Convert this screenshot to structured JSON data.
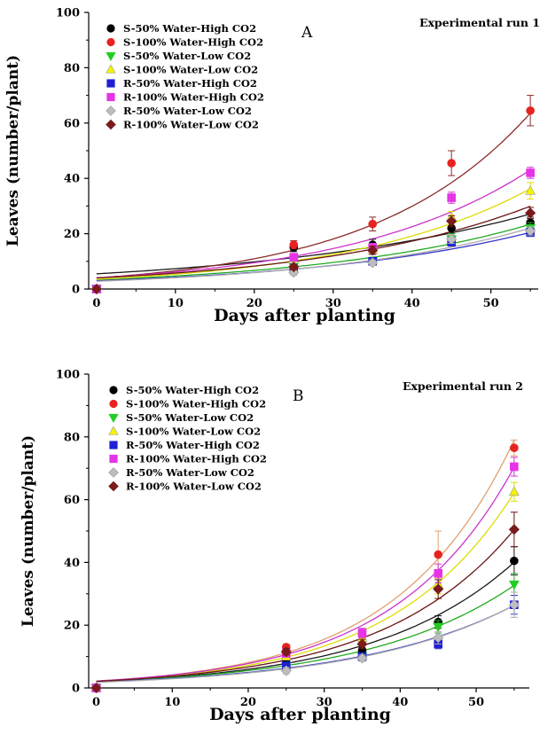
{
  "chart_data": [
    {
      "type": "scatter",
      "panel_label": "A",
      "run_label": "Experimental run 1",
      "xlabel": "Days after planting",
      "ylabel": "Leaves (number/plant)",
      "xlim": [
        -1,
        56
      ],
      "ylim": [
        0,
        100
      ],
      "xticks": [
        0,
        10,
        20,
        30,
        40,
        50
      ],
      "yticks": [
        0,
        20,
        40,
        60,
        80,
        100
      ],
      "legend_position": "top-left",
      "x": [
        0,
        25,
        35,
        45,
        55
      ],
      "series": [
        {
          "name": "S-50% Water-High CO2",
          "color": "#000000",
          "marker": "circle",
          "values": [
            0,
            15,
            16,
            22,
            24
          ],
          "err": [
            0,
            1.5,
            2,
            2,
            2
          ],
          "curve": [
            5.5,
            0.029
          ],
          "curve_color": "#1a1a1a"
        },
        {
          "name": "S-100% Water-High CO2",
          "color": "#e8231f",
          "marker": "circle",
          "values": [
            0,
            16,
            23.5,
            45.5,
            64.5
          ],
          "err": [
            0,
            1.5,
            2.5,
            4.5,
            5.5
          ],
          "curve": [
            4.0,
            0.0503
          ],
          "curve_color": "#8b2a2a"
        },
        {
          "name": "S-50% Water-Low CO2",
          "color": "#22cc22",
          "marker": "triangle-down",
          "values": [
            0,
            8,
            10,
            18,
            22
          ],
          "err": [
            0,
            1,
            1.5,
            2,
            2
          ],
          "curve": [
            3.3,
            0.0356
          ],
          "curve_color": "#22aa22"
        },
        {
          "name": "S-100% Water-Low CO2",
          "color": "#f4f400",
          "marker": "triangle-up",
          "values": [
            0,
            11,
            14,
            26,
            35.5
          ],
          "err": [
            0,
            1,
            1.5,
            2,
            3
          ],
          "curve": [
            3.5,
            0.0425
          ],
          "curve_color": "#dddd00"
        },
        {
          "name": "R-50% Water-High CO2",
          "color": "#1f1fd6",
          "marker": "square",
          "values": [
            0,
            7,
            10,
            17,
            20.5
          ],
          "err": [
            0,
            1,
            1,
            1.5,
            1.5
          ],
          "curve": [
            3.0,
            0.0349
          ],
          "curve_color": "#3333cc"
        },
        {
          "name": "R-100% Water-High CO2",
          "color": "#e633e6",
          "marker": "square",
          "values": [
            0,
            11.5,
            15,
            33,
            42
          ],
          "err": [
            0,
            1,
            1.5,
            2,
            2
          ],
          "curve": [
            4.0,
            0.0432
          ],
          "curve_color": "#cc33cc"
        },
        {
          "name": "R-50% Water-Low CO2",
          "color": "#bdbdbd",
          "marker": "diamond",
          "values": [
            0,
            6,
            9.5,
            18,
            21
          ],
          "err": [
            0,
            1,
            1,
            1.5,
            1.5
          ],
          "curve": [
            2.8,
            0.0375
          ],
          "curve_color": "#aaaaaa"
        },
        {
          "name": "R-100% Water-Low CO2",
          "color": "#7a1a1a",
          "marker": "diamond",
          "values": [
            0,
            8,
            14,
            24.5,
            27.5
          ],
          "err": [
            0,
            1,
            1.5,
            2,
            2
          ],
          "curve": [
            4.0,
            0.0366
          ],
          "curve_color": "#6a1515"
        }
      ]
    },
    {
      "type": "scatter",
      "panel_label": "B",
      "run_label": "Experimental run 2",
      "xlabel": "Days after planting",
      "ylabel": "Leaves (number/plant)",
      "xlim": [
        -1,
        57
      ],
      "ylim": [
        0,
        100
      ],
      "xticks": [
        0,
        10,
        20,
        30,
        40,
        50
      ],
      "yticks": [
        0,
        20,
        40,
        60,
        80,
        100
      ],
      "legend_position": "top-left",
      "x": [
        0,
        25,
        35,
        45,
        55
      ],
      "series": [
        {
          "name": "S-50% Water-High CO2",
          "color": "#000000",
          "marker": "circle",
          "values": [
            0,
            9,
            12,
            21,
            40.5
          ],
          "err": [
            0,
            1,
            1.5,
            2,
            4.5
          ],
          "curve": [
            2.0,
            0.0545
          ],
          "curve_color": "#1a1a1a"
        },
        {
          "name": "S-100% Water-High CO2",
          "color": "#e8231f",
          "marker": "circle",
          "values": [
            0,
            13,
            17,
            42.5,
            76.5
          ],
          "err": [
            0,
            1,
            1.5,
            7.5,
            2.5
          ],
          "curve": [
            2.2,
            0.0651
          ],
          "curve_color": "#e0a070"
        },
        {
          "name": "S-50% Water-Low CO2",
          "color": "#22cc22",
          "marker": "triangle-down",
          "values": [
            0,
            7,
            10,
            19.5,
            33
          ],
          "err": [
            0,
            1,
            1,
            2,
            3.5
          ],
          "curve": [
            2.0,
            0.0508
          ],
          "curve_color": "#22aa22"
        },
        {
          "name": "S-100% Water-Low CO2",
          "color": "#f4f400",
          "marker": "triangle-up",
          "values": [
            0,
            10,
            16,
            33,
            62.5
          ],
          "err": [
            0,
            1,
            1.5,
            3,
            3
          ],
          "curve": [
            2.1,
            0.0616
          ],
          "curve_color": "#dddd00"
        },
        {
          "name": "R-50% Water-High CO2",
          "color": "#1f1fd6",
          "marker": "square",
          "values": [
            0,
            7,
            10,
            14,
            26.5
          ],
          "err": [
            0,
            1,
            1,
            1.5,
            3
          ],
          "curve": [
            1.9,
            0.0478
          ],
          "curve_color": "#3333cc"
        },
        {
          "name": "R-100% Water-High CO2",
          "color": "#e633e6",
          "marker": "square",
          "values": [
            0,
            11,
            17.5,
            36.5,
            70.5
          ],
          "err": [
            0,
            1,
            1.5,
            3,
            3
          ],
          "curve": [
            2.2,
            0.063
          ],
          "curve_color": "#cc33cc"
        },
        {
          "name": "R-50% Water-Low CO2",
          "color": "#bdbdbd",
          "marker": "diamond",
          "values": [
            0,
            5.5,
            9.5,
            16,
            26.5
          ],
          "err": [
            0,
            1,
            1,
            2,
            4
          ],
          "curve": [
            1.8,
            0.0488
          ],
          "curve_color": "#aaaaaa"
        },
        {
          "name": "R-100% Water-Low CO2",
          "color": "#7a1a1a",
          "marker": "diamond",
          "values": [
            0,
            11.5,
            14,
            31.5,
            50.5
          ],
          "err": [
            0,
            1,
            1.5,
            3,
            5.5
          ],
          "curve": [
            2.1,
            0.0578
          ],
          "curve_color": "#6a1515"
        }
      ]
    }
  ]
}
